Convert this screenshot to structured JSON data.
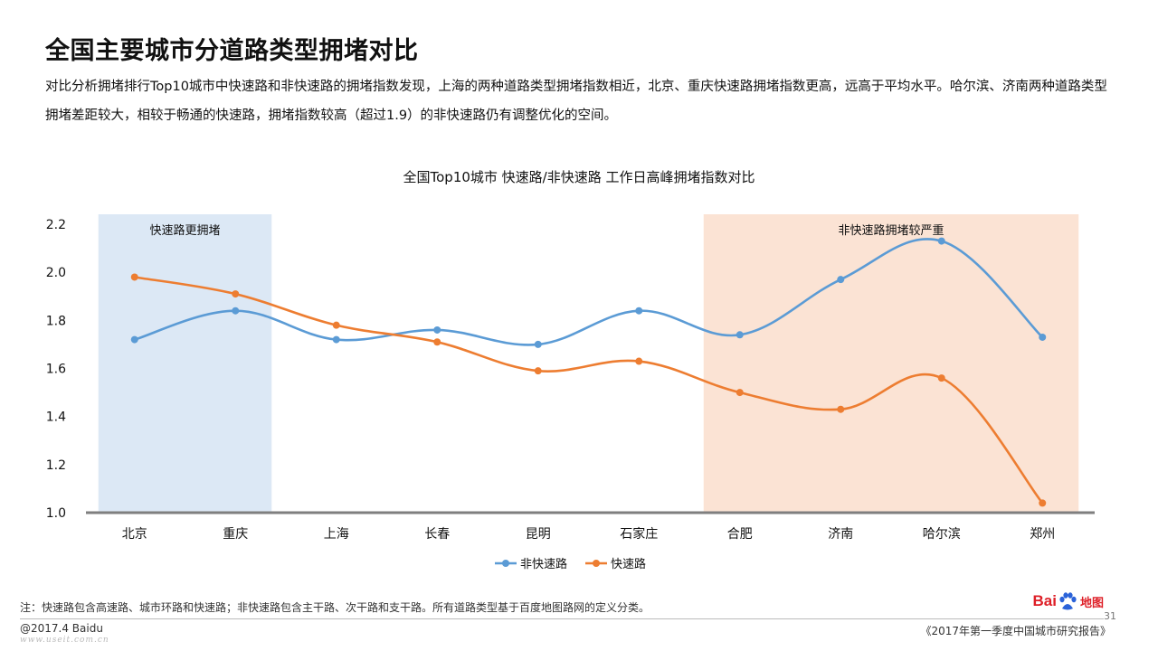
{
  "page": {
    "title": "全国主要城市分道路类型拥堵对比",
    "description": "对比分析拥堵排行Top10城市中快速路和非快速路的拥堵指数发现，上海的两种道路类型拥堵指数相近，北京、重庆快速路拥堵指数更高，远高于平均水平。哈尔滨、济南两种道路类型拥堵差距较大，相较于畅通的快速路，拥堵指数较高（超过1.9）的非快速路仍有调整优化的空间。",
    "note": "注：快速路包含高速路、城市环路和快速路；非快速路包含主干路、次干路和支干路。所有道路类型基于百度地图路网的定义分类。",
    "copyright": "@2017.4 Baidu",
    "report": "《2017年第一季度中国城市研究报告》",
    "page_number": "31",
    "watermark": "www.useit.com.cn",
    "logo": {
      "text_a": "Bai",
      "text_b": "地图",
      "icon": "baidu-paw-icon",
      "color_red": "#de1f27",
      "color_blue": "#2b63d9"
    }
  },
  "chart_data": {
    "type": "line",
    "title": "全国Top10城市 快速路/非快速路 工作日高峰拥堵指数对比",
    "categories": [
      "北京",
      "重庆",
      "上海",
      "长春",
      "昆明",
      "石家庄",
      "合肥",
      "济南",
      "哈尔滨",
      "郑州"
    ],
    "series": [
      {
        "name": "非快速路",
        "color": "#5b9bd5",
        "values": [
          1.72,
          1.84,
          1.72,
          1.76,
          1.7,
          1.84,
          1.74,
          1.97,
          2.13,
          1.73
        ]
      },
      {
        "name": "快速路",
        "color": "#ed7d31",
        "values": [
          1.98,
          1.91,
          1.78,
          1.71,
          1.59,
          1.63,
          1.5,
          1.43,
          1.56,
          1.04
        ]
      }
    ],
    "ylim": [
      1.0,
      2.2
    ],
    "yticks": [
      "1.0",
      "1.2",
      "1.4",
      "1.6",
      "1.8",
      "2.0",
      "2.2"
    ],
    "smooth": true,
    "grid": false,
    "legend_position": "bottom",
    "highlights": [
      {
        "label": "快速路更拥堵",
        "from": "北京",
        "to": "重庆",
        "color": "#dce8f5"
      },
      {
        "label": "非快速路拥堵较严重",
        "from": "合肥",
        "to": "郑州",
        "color": "#fbe3d4"
      }
    ]
  }
}
